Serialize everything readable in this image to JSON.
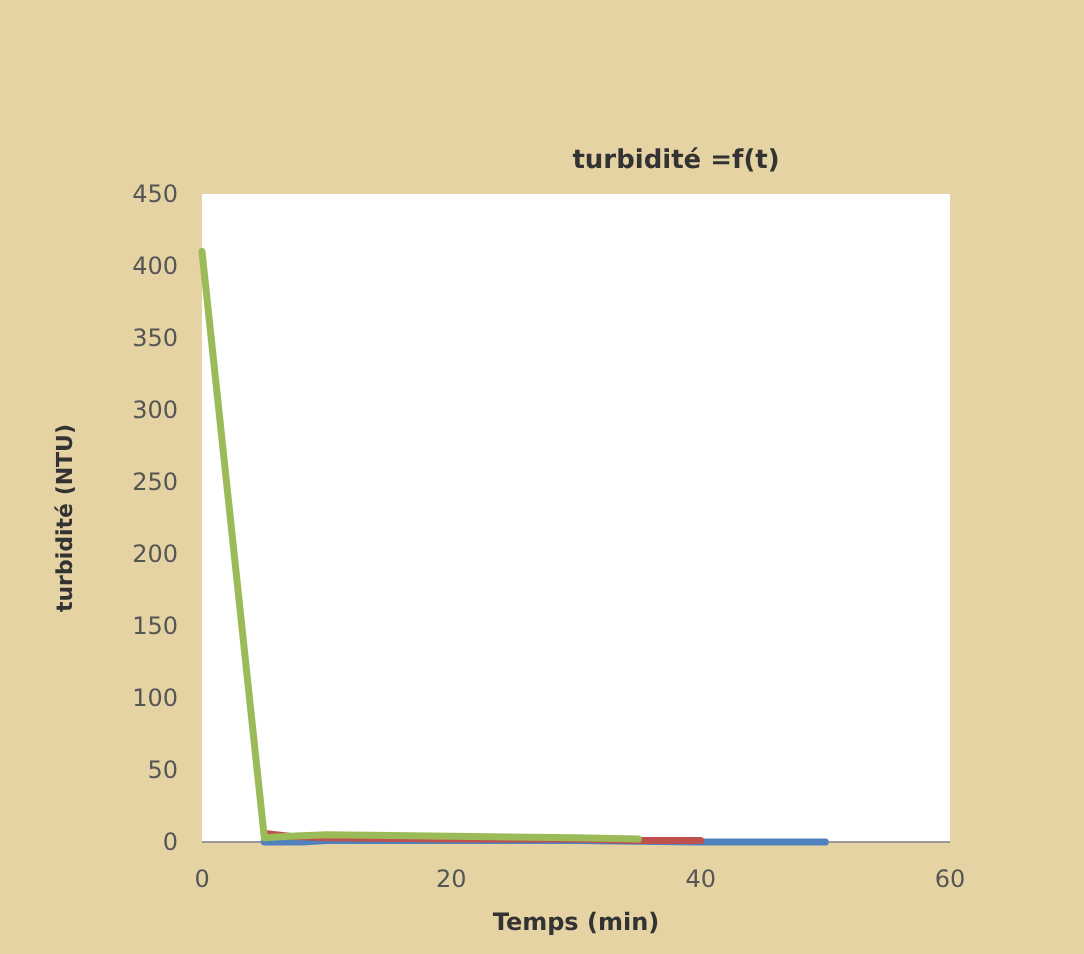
{
  "chart_data": {
    "type": "line",
    "title": "turbidité =f(t)",
    "xlabel": "Temps (min)",
    "ylabel": "turbidité (NTU)",
    "xlim": [
      0,
      60
    ],
    "xticks": [
      0,
      20,
      40,
      60
    ],
    "ylim": [
      0,
      450
    ],
    "yticks": [
      0,
      50,
      100,
      150,
      200,
      250,
      300,
      350,
      400,
      450
    ],
    "grid": false,
    "marker": "none",
    "line_style": "solid",
    "series": [
      {
        "color": "#4f81bd",
        "x": [
          5,
          8,
          10,
          20,
          30,
          40,
          50
        ],
        "values": [
          0,
          0,
          1,
          1,
          1,
          0,
          0
        ]
      },
      {
        "color": "#c0504d",
        "x": [
          5,
          7,
          10,
          20,
          30,
          35,
          40
        ],
        "values": [
          6,
          4,
          3,
          2,
          2,
          1,
          1
        ]
      },
      {
        "color": "#9bbb59",
        "x": [
          0,
          5,
          7,
          10,
          20,
          30,
          35
        ],
        "values": [
          410,
          3,
          4,
          5,
          4,
          3,
          2
        ]
      }
    ]
  }
}
